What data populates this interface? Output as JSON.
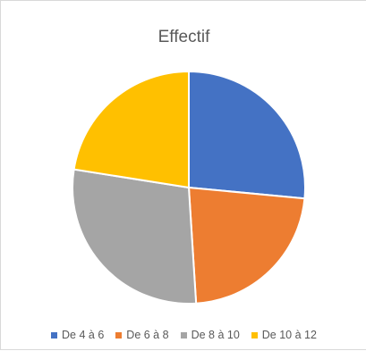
{
  "chart_data": {
    "type": "pie",
    "title": "Effectif",
    "categories": [
      "De 4 à 6",
      "De 6 à 8",
      "De 8 à 10",
      "De 10 à 12"
    ],
    "values": [
      26.5,
      22.5,
      28.5,
      22.5
    ],
    "colors": [
      "#4472c4",
      "#ed7d31",
      "#a5a5a5",
      "#ffc000"
    ],
    "legend_position": "bottom",
    "start_angle_deg": 0,
    "direction": "clockwise"
  }
}
